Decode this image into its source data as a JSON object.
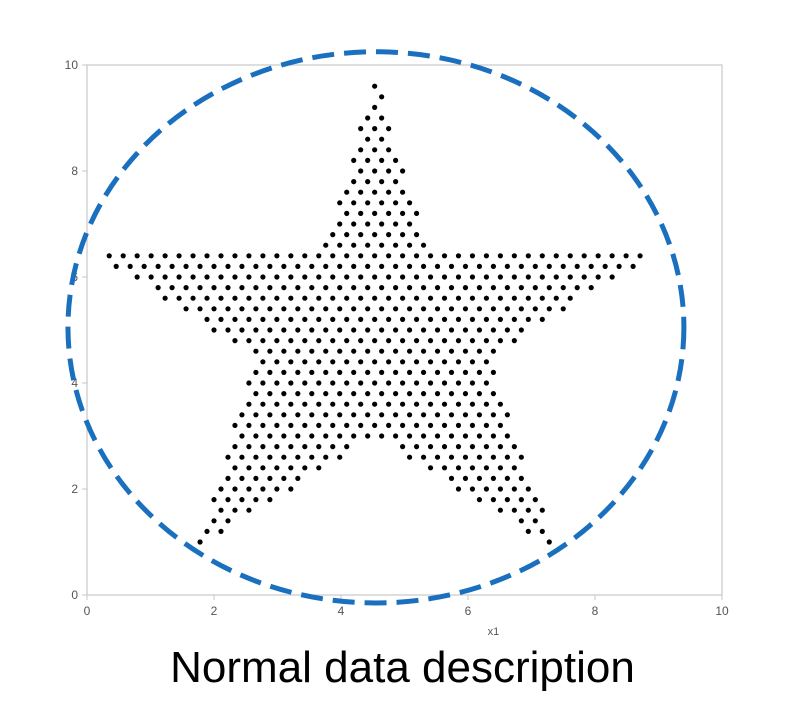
{
  "caption": "Normal data description",
  "colors": {
    "points": "#000000",
    "boundary": "#1a6fbf",
    "frame": "#c8c8c8",
    "text": "#555555"
  },
  "chart_data": {
    "type": "scatter",
    "title": "",
    "xlabel": "x1",
    "ylabel": "",
    "xlim": [
      0,
      10
    ],
    "ylim": [
      0,
      10
    ],
    "xticks": [
      "0",
      "2",
      "4",
      "6",
      "8",
      "10"
    ],
    "yticks": [
      "0",
      "2",
      "4",
      "6",
      "8",
      "10"
    ],
    "grid": false,
    "legend": "none",
    "shape": "five-pointed star filled with points",
    "star": {
      "center": [
        4.55,
        5.0
      ],
      "outer_vertices": [
        [
          4.55,
          9.75
        ],
        [
          9.0,
          6.5
        ],
        [
          7.4,
          0.8
        ],
        [
          4.55,
          3.0
        ],
        [
          1.75,
          0.9
        ],
        [
          0.05,
          6.5
        ]
      ],
      "tip_top": [
        4.55,
        9.75
      ],
      "tip_right": [
        9.0,
        6.5
      ],
      "tip_lower_right": [
        7.4,
        0.8
      ],
      "tip_lower_left": [
        1.75,
        0.9
      ],
      "tip_left": [
        0.05,
        6.5
      ],
      "inner_notch_bottom": [
        4.55,
        3.0
      ],
      "inner_upper_left": [
        3.7,
        6.5
      ],
      "inner_upper_right": [
        5.4,
        6.5
      ],
      "inner_left": [
        2.65,
        4.5
      ],
      "inner_right": [
        6.35,
        4.5
      ]
    },
    "boundary_circle": {
      "center": [
        4.55,
        5.05
      ],
      "radius_x": 4.85,
      "radius_y": 5.2,
      "style": "dashed"
    }
  }
}
